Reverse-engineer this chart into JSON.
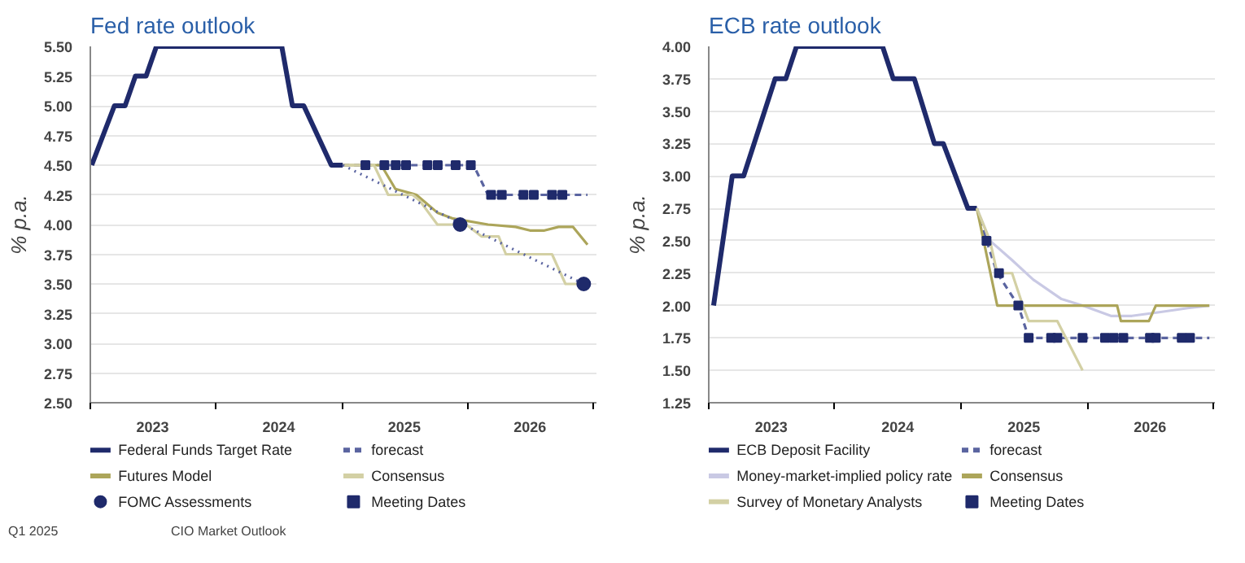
{
  "chart_data": [
    {
      "type": "line",
      "title": "Fed rate outlook",
      "ylabel": "% p.a.",
      "annotations": [
        "Q1 2025",
        "CIO Market Outlook"
      ],
      "grid": "y",
      "legend": "bottom",
      "xlim": [
        "2023-01-01",
        "2027-01-10"
      ],
      "ylim": [
        2.5,
        5.5
      ],
      "yticks": [
        {
          "value": 2.5,
          "label": "2.50"
        },
        {
          "value": 2.75,
          "label": "2.75"
        },
        {
          "value": 3.0,
          "label": "3.00"
        },
        {
          "value": 3.25,
          "label": "3.25"
        },
        {
          "value": 3.5,
          "label": "3.50"
        },
        {
          "value": 3.75,
          "label": "3.75"
        },
        {
          "value": 4.0,
          "label": "4.00"
        },
        {
          "value": 4.25,
          "label": "4.25"
        },
        {
          "value": 4.5,
          "label": "4.50"
        },
        {
          "value": 4.75,
          "label": "4.75"
        },
        {
          "value": 5.0,
          "label": "5.00"
        },
        {
          "value": 5.25,
          "label": "5.25"
        },
        {
          "value": 5.5,
          "label": "5.50"
        }
      ],
      "xticks": [
        {
          "value": "2023-07-01",
          "label": "2023"
        },
        {
          "value": "2024-07-01",
          "label": "2024"
        },
        {
          "value": "2025-07-01",
          "label": "2025"
        },
        {
          "value": "2026-07-01",
          "label": "2026"
        },
        {
          "value": "2023-01-01",
          "label": null
        },
        {
          "value": "2024-01-01",
          "label": null
        },
        {
          "value": "2025-01-01",
          "label": null
        },
        {
          "value": "2026-01-01",
          "label": null
        },
        {
          "value": "2027-01-01",
          "label": null
        }
      ],
      "series": [
        {
          "name": "Federal Funds Target Rate",
          "color": "#1f2a6b",
          "type": "line",
          "line_style": "solid",
          "x": [
            "2023-01-05",
            "2023-03-12",
            "2023-04-12",
            "2023-05-12",
            "2023-06-12",
            "2023-07-12",
            "2024-07-10",
            "2024-08-10",
            "2024-09-12",
            "2024-12-01",
            "2025-01-03"
          ],
          "values": [
            4.5,
            5.0,
            5.0,
            5.25,
            5.25,
            5.5,
            5.5,
            5.0,
            5.0,
            4.5,
            4.5
          ]
        },
        {
          "name": "forecast",
          "color": "#5a64a0",
          "type": "line",
          "line_style": "dashed",
          "x": [
            "2025-01-03",
            "2026-01-18",
            "2026-03-01",
            "2026-12-15"
          ],
          "values": [
            4.5,
            4.5,
            4.25,
            4.25
          ]
        },
        {
          "name": "Futures Model",
          "color": "#aca55a",
          "type": "line",
          "line_style": "solid",
          "x": [
            "2025-01-03",
            "2025-04-25",
            "2025-06-05",
            "2025-08-05",
            "2025-10-05",
            "2025-11-20",
            "2026-03-01",
            "2026-05-20",
            "2026-07-01",
            "2026-08-12",
            "2026-09-22",
            "2026-11-03",
            "2026-12-15"
          ],
          "values": [
            4.5,
            4.5,
            4.3,
            4.25,
            4.1,
            4.05,
            4.0,
            3.98,
            3.95,
            3.95,
            3.98,
            3.98,
            3.83
          ]
        },
        {
          "name": "Consensus",
          "color": "#d3d0a4",
          "type": "line",
          "line_style": "solid",
          "x": [
            "2025-01-03",
            "2025-04-04",
            "2025-05-15",
            "2025-07-25",
            "2025-08-15",
            "2025-10-05",
            "2025-12-28",
            "2026-02-10",
            "2026-04-01",
            "2026-04-22",
            "2026-09-03",
            "2026-10-12",
            "2026-11-25"
          ],
          "values": [
            4.5,
            4.5,
            4.25,
            4.25,
            4.2,
            4.0,
            4.0,
            3.9,
            3.9,
            3.75,
            3.75,
            3.5,
            3.5
          ]
        },
        {
          "color": "#5a64a0",
          "type": "line",
          "line_style": "dotted",
          "x": [
            "2025-01-03",
            "2026-12-04"
          ],
          "values": [
            4.5,
            3.5
          ]
        },
        {
          "name": "FOMC Assessments",
          "color": "#1f2a6b",
          "type": "scatter",
          "marker": "circle",
          "x": [
            "2025-12-10",
            "2026-12-04"
          ],
          "values": [
            4.0,
            3.5
          ]
        },
        {
          "name": "Meeting Dates",
          "color": "#1f2a6b",
          "type": "scatter",
          "marker": "square",
          "x": [
            "2025-03-10",
            "2025-05-04",
            "2025-06-06",
            "2025-07-06",
            "2025-09-06",
            "2025-10-06",
            "2025-11-27",
            "2026-01-10",
            "2026-03-10",
            "2026-04-10",
            "2026-06-12",
            "2026-07-12",
            "2026-09-03",
            "2026-10-03"
          ],
          "values": [
            4.5,
            4.5,
            4.5,
            4.5,
            4.5,
            4.5,
            4.5,
            4.5,
            4.25,
            4.25,
            4.25,
            4.25,
            4.25,
            4.25
          ]
        }
      ]
    },
    {
      "type": "line",
      "title": "ECB rate outlook",
      "ylabel": "% p.a.",
      "grid": "y",
      "legend": "bottom",
      "xlim": [
        "2023-01-01",
        "2027-01-05"
      ],
      "ylim": [
        1.25,
        4.0
      ],
      "yticks": [
        {
          "value": 1.25,
          "label": "1.25"
        },
        {
          "value": 1.5,
          "label": "1.50"
        },
        {
          "value": 1.75,
          "label": "1.75"
        },
        {
          "value": 2.0,
          "label": "2.00"
        },
        {
          "value": 2.25,
          "label": "2.25"
        },
        {
          "value": 2.5,
          "label": "2.50"
        },
        {
          "value": 2.75,
          "label": "2.75"
        },
        {
          "value": 3.0,
          "label": "3.00"
        },
        {
          "value": 3.25,
          "label": "3.25"
        },
        {
          "value": 3.5,
          "label": "3.50"
        },
        {
          "value": 3.75,
          "label": "3.75"
        },
        {
          "value": 4.0,
          "label": "4.00"
        }
      ],
      "xticks": [
        {
          "value": "2023-07-01",
          "label": "2023"
        },
        {
          "value": "2024-07-01",
          "label": "2024"
        },
        {
          "value": "2025-07-01",
          "label": "2025"
        },
        {
          "value": "2026-07-01",
          "label": "2026"
        },
        {
          "value": "2023-01-01",
          "label": null
        },
        {
          "value": "2024-01-01",
          "label": null
        },
        {
          "value": "2025-01-01",
          "label": null
        },
        {
          "value": "2026-01-01",
          "label": null
        },
        {
          "value": "2027-01-01",
          "label": null
        }
      ],
      "series": [
        {
          "name": "ECB Deposit Facility",
          "color": "#1f2a6b",
          "type": "line",
          "line_style": "solid",
          "x": [
            "2023-01-15",
            "2023-03-10",
            "2023-04-12",
            "2023-07-12",
            "2023-08-12",
            "2023-09-12",
            "2024-05-18",
            "2024-06-18",
            "2024-08-18",
            "2024-10-15",
            "2024-11-10",
            "2025-01-20",
            "2025-02-15"
          ],
          "values": [
            2.0,
            3.0,
            3.0,
            3.75,
            3.75,
            4.0,
            4.0,
            3.75,
            3.75,
            3.25,
            3.25,
            2.75,
            2.75
          ]
        },
        {
          "name": "forecast",
          "color": "#5a64a0",
          "type": "line",
          "line_style": "dashed",
          "x": [
            "2025-02-15",
            "2025-03-15",
            "2025-04-15",
            "2025-06-15",
            "2025-07-15",
            "2026-12-20"
          ],
          "values": [
            2.75,
            2.5,
            2.25,
            2.0,
            1.75,
            1.75
          ]
        },
        {
          "name": "Money-market-implied policy rate",
          "color": "#c9c9e4",
          "type": "line",
          "line_style": "solid",
          "x": [
            "2025-02-15",
            "2025-03-25",
            "2025-05-28",
            "2025-07-28",
            "2025-10-18",
            "2025-12-18",
            "2026-03-10",
            "2026-05-10",
            "2026-08-01",
            "2026-10-18",
            "2026-12-20"
          ],
          "values": [
            2.75,
            2.5,
            2.35,
            2.2,
            2.05,
            2.0,
            1.92,
            1.92,
            1.95,
            1.98,
            2.0
          ]
        },
        {
          "name": "Consensus",
          "color": "#aca55a",
          "type": "line",
          "line_style": "solid",
          "x": [
            "2025-02-15",
            "2025-04-15",
            "2026-03-28",
            "2026-04-08",
            "2026-06-28",
            "2026-07-18",
            "2026-12-20"
          ],
          "values": [
            2.75,
            2.0,
            2.0,
            1.88,
            1.88,
            2.0,
            2.0
          ]
        },
        {
          "name": "Survey of Monetary Analysts",
          "color": "#d3d0a4",
          "type": "line",
          "line_style": "solid",
          "x": [
            "2025-02-15",
            "2025-03-25",
            "2025-04-15",
            "2025-05-28",
            "2025-06-28",
            "2025-07-15",
            "2025-10-06",
            "2025-12-18"
          ],
          "values": [
            2.75,
            2.5,
            2.25,
            2.25,
            2.0,
            1.88,
            1.88,
            1.5
          ]
        },
        {
          "name": "Meeting Dates",
          "color": "#1f2a6b",
          "type": "scatter",
          "marker": "square",
          "x": [
            "2025-03-15",
            "2025-04-20",
            "2025-06-15",
            "2025-07-15",
            "2025-09-18",
            "2025-10-06",
            "2025-12-18",
            "2026-02-21",
            "2026-03-18",
            "2026-04-15",
            "2026-07-01",
            "2026-07-18",
            "2026-10-01",
            "2026-10-25"
          ],
          "values": [
            2.5,
            2.25,
            2.0,
            1.75,
            1.75,
            1.75,
            1.75,
            1.75,
            1.75,
            1.75,
            1.75,
            1.75,
            1.75,
            1.75
          ]
        }
      ]
    }
  ]
}
